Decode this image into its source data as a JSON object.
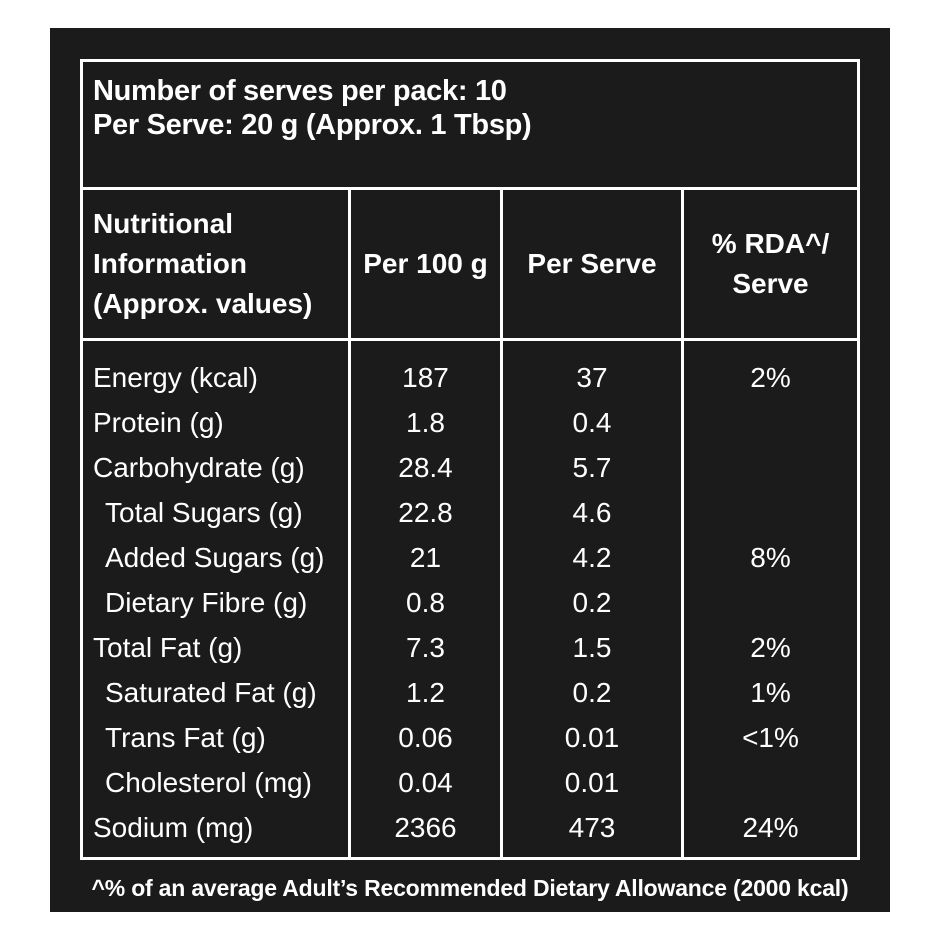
{
  "pack": {
    "serves_line": "Number of serves per pack: 10",
    "per_serve_line": "Per Serve: 20 g (Approx. 1 Tbsp)"
  },
  "headers": {
    "nutri_line1": "Nutritional",
    "nutri_line2": "Information",
    "nutri_line3": "(Approx. values)",
    "per100": "Per 100 g",
    "perserve": "Per Serve",
    "rda_line1": "% RDA^/",
    "rda_line2": "Serve"
  },
  "rows": [
    {
      "name": "Energy (kcal)",
      "per100": "187",
      "perserve": "37",
      "rda": "2%"
    },
    {
      "name": "Protein (g)",
      "per100": "1.8",
      "perserve": "0.4",
      "rda": ""
    },
    {
      "name": "Carbohydrate (g)",
      "per100": "28.4",
      "perserve": "5.7",
      "rda": ""
    },
    {
      "name": "Total Sugars (g)",
      "per100": "22.8",
      "perserve": "4.6",
      "rda": ""
    },
    {
      "name": "Added Sugars (g)",
      "per100": "21",
      "perserve": "4.2",
      "rda": "8%"
    },
    {
      "name": "Dietary Fibre (g)",
      "per100": "0.8",
      "perserve": "0.2",
      "rda": ""
    },
    {
      "name": "Total Fat (g)",
      "per100": "7.3",
      "perserve": "1.5",
      "rda": "2%"
    },
    {
      "name": "Saturated Fat (g)",
      "per100": "1.2",
      "perserve": "0.2",
      "rda": "1%"
    },
    {
      "name": "Trans Fat (g)",
      "per100": "0.06",
      "perserve": "0.01",
      "rda": "<1%"
    },
    {
      "name": "Cholesterol (mg)",
      "per100": "0.04",
      "perserve": "0.01",
      "rda": ""
    },
    {
      "name": "Sodium (mg)",
      "per100": "2366",
      "perserve": "473",
      "rda": "24%"
    }
  ],
  "footnote": "^% of an average Adult’s Recommended Dietary Allowance (2000 kcal)",
  "colors": {
    "background": "#1b1b1b",
    "text": "#ffffff",
    "page": "#ffffff"
  }
}
